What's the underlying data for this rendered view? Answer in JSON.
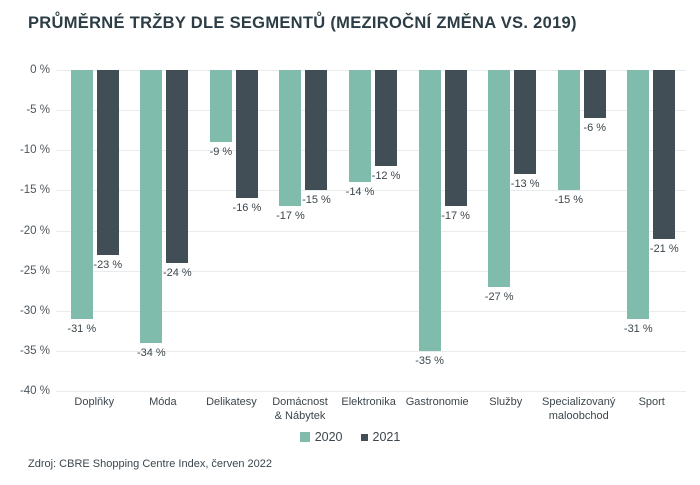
{
  "title": "PRŮMĚRNÉ TRŽBY DLE SEGMENTŮ (MEZIROČNÍ ZMĚNA VS. 2019)",
  "source": "Zdroj: CBRE Shopping Centre Index, červen 2022",
  "colors": {
    "series_2020": "#7FBCAB",
    "series_2021": "#414E55",
    "grid": "#E9ECEC",
    "title": "#2C3D45",
    "text": "#3C464C",
    "axis": "#4D565C"
  },
  "chart_data": {
    "type": "bar",
    "title": "PRŮMĚRNÉ TRŽBY DLE SEGMENTŮ (MEZIROČNÍ ZMĚNA VS. 2019)",
    "categories": [
      "Doplňky",
      "Móda",
      "Delikatesy",
      "Domácnost & Nábytek",
      "Elektronika",
      "Gastronomie",
      "Služby",
      "Specializovaný maloobchod",
      "Sport"
    ],
    "series": [
      {
        "name": "2020",
        "values": [
          -31,
          -34,
          -9,
          -17,
          -14,
          -35,
          -27,
          -15,
          -31
        ]
      },
      {
        "name": "2021",
        "values": [
          -23,
          -24,
          -16,
          -15,
          -12,
          -17,
          -13,
          -6,
          -21
        ]
      }
    ],
    "value_label_suffix": " %",
    "ylim": [
      -40,
      0
    ],
    "ytick_step": 5,
    "yticks": [
      "0 %",
      "-5 %",
      "-10 %",
      "-15 %",
      "-20 %",
      "-25 %",
      "-30 %",
      "-35 %",
      "-40 %"
    ],
    "xlabel": "",
    "ylabel": "",
    "grid": true,
    "data_labels": true,
    "legend_position": "bottom"
  }
}
